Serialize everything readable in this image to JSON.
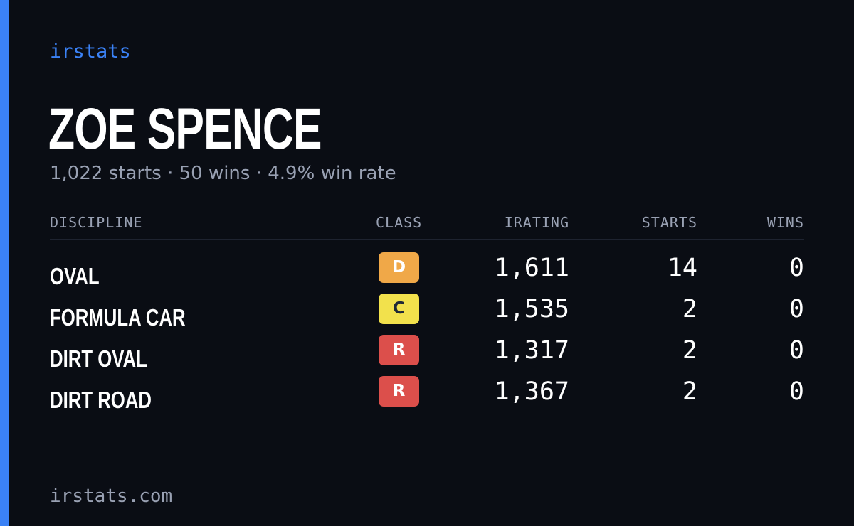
{
  "brand": "irstats",
  "driver": {
    "name": "ZOE SPENCE",
    "summary": "1,022 starts · 50 wins · 4.9% win rate"
  },
  "table": {
    "headers": {
      "discipline": "DISCIPLINE",
      "class": "CLASS",
      "irating": "IRATING",
      "starts": "STARTS",
      "wins": "WINS"
    },
    "rows": [
      {
        "discipline": "OVAL",
        "class": "D",
        "class_color": "#f0a848",
        "class_text_color": "#ffffff",
        "irating": "1,611",
        "starts": "14",
        "wins": "0"
      },
      {
        "discipline": "FORMULA CAR",
        "class": "C",
        "class_color": "#f2e14c",
        "class_text_color": "#1f2937",
        "irating": "1,535",
        "starts": "2",
        "wins": "0"
      },
      {
        "discipline": "DIRT OVAL",
        "class": "R",
        "class_color": "#dc4f4b",
        "class_text_color": "#ffffff",
        "irating": "1,317",
        "starts": "2",
        "wins": "0"
      },
      {
        "discipline": "DIRT ROAD",
        "class": "R",
        "class_color": "#dc4f4b",
        "class_text_color": "#ffffff",
        "irating": "1,367",
        "starts": "2",
        "wins": "0"
      }
    ]
  },
  "footer": "irstats.com",
  "colors": {
    "background": "#0a0d14",
    "accent": "#3b82f6",
    "muted": "#99a1b3",
    "text": "#ffffff"
  }
}
